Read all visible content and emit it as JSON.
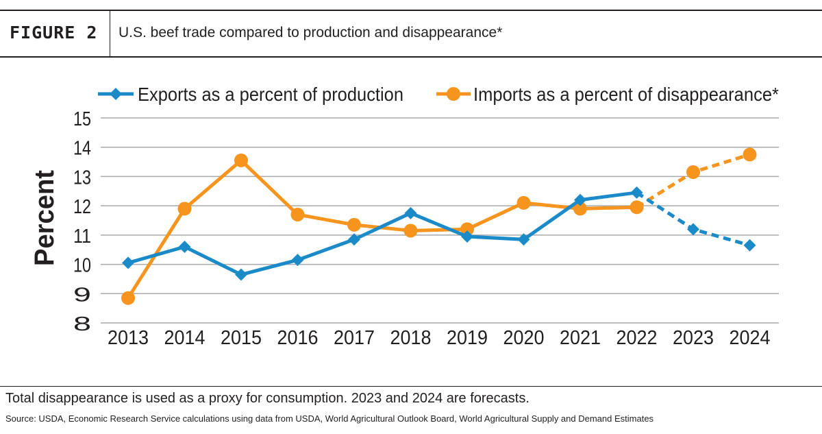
{
  "header": {
    "figure_label": "FIGURE 2",
    "title": "U.S. beef trade compared to production and disappearance*"
  },
  "footer": {
    "note": "Total disappearance is used as a proxy for consumption. 2023 and 2024 are forecasts.",
    "source": "Source: USDA, Economic Research Service calculations using data from USDA, World Agricultural Outlook Board, World Agricultural Supply and Demand Estimates"
  },
  "chart_data": {
    "type": "line",
    "ylabel": "Percent",
    "xlabel": "",
    "ylim": [
      8,
      15
    ],
    "yticks": [
      8,
      9,
      10,
      11,
      12,
      13,
      14,
      15
    ],
    "grid": true,
    "legend_placement": "top",
    "categories": [
      "2013",
      "2014",
      "2015",
      "2016",
      "2017",
      "2018",
      "2019",
      "2020",
      "2021",
      "2022",
      "2023",
      "2024"
    ],
    "forecast_categories": [
      "2023",
      "2024"
    ],
    "series": [
      {
        "name": "Exports as a percent of production",
        "color": "#1b8ac8",
        "marker": "diamond",
        "values": [
          10.05,
          10.6,
          9.65,
          10.15,
          10.85,
          11.75,
          10.95,
          10.85,
          12.2,
          12.45,
          11.2,
          10.65
        ]
      },
      {
        "name": "Imports as a percent of disappearance*",
        "color": "#f7941d",
        "marker": "circle",
        "values": [
          8.85,
          11.9,
          13.55,
          11.7,
          11.35,
          11.15,
          11.2,
          12.1,
          11.9,
          11.95,
          13.15,
          13.75
        ]
      }
    ]
  }
}
